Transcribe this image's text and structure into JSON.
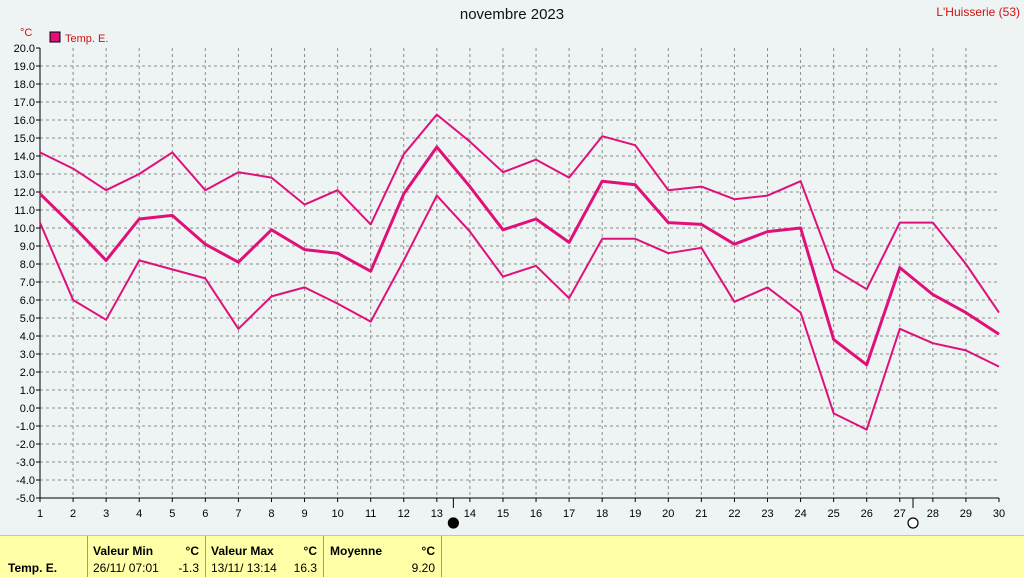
{
  "header": {
    "title": "novembre 2023",
    "station": "L'Huisserie (53)"
  },
  "chart_data": {
    "type": "line",
    "title": "novembre 2023",
    "y_unit": "°C",
    "ylim": [
      -5,
      20
    ],
    "y_step": 1,
    "x": [
      1,
      2,
      3,
      4,
      5,
      6,
      7,
      8,
      9,
      10,
      11,
      12,
      13,
      14,
      15,
      16,
      17,
      18,
      19,
      20,
      21,
      22,
      23,
      24,
      25,
      26,
      27,
      28,
      29,
      30
    ],
    "grid": true,
    "legend_position": "top-left",
    "series": [
      {
        "name": "Temp. E.",
        "role": "max",
        "color": "#e0107a",
        "values": [
          14.2,
          13.3,
          12.1,
          13.0,
          14.2,
          12.1,
          13.1,
          12.8,
          11.3,
          12.1,
          10.2,
          14.1,
          16.3,
          14.8,
          13.1,
          13.8,
          12.8,
          15.1,
          14.6,
          12.1,
          12.3,
          11.6,
          11.8,
          12.6,
          7.7,
          6.6,
          10.3,
          10.3,
          8.0,
          5.3
        ]
      },
      {
        "name": "",
        "role": "mean",
        "color": "#e0107a",
        "values": [
          11.9,
          10.1,
          8.2,
          10.5,
          10.7,
          9.1,
          8.1,
          9.9,
          8.8,
          8.6,
          7.6,
          11.9,
          14.5,
          12.3,
          9.9,
          10.5,
          9.2,
          12.6,
          12.4,
          10.3,
          10.2,
          9.1,
          9.8,
          10.0,
          3.8,
          2.4,
          7.8,
          6.3,
          5.3,
          4.1
        ]
      },
      {
        "name": "",
        "role": "min",
        "color": "#e0107a",
        "values": [
          10.3,
          6.0,
          4.9,
          8.2,
          7.7,
          7.2,
          4.4,
          6.2,
          6.7,
          5.8,
          4.8,
          8.2,
          11.8,
          9.8,
          7.3,
          7.9,
          6.1,
          9.4,
          9.4,
          8.6,
          8.9,
          5.9,
          6.7,
          5.3,
          -0.3,
          -1.2,
          4.4,
          3.6,
          3.2,
          2.3
        ]
      }
    ],
    "moon_markers": [
      {
        "phase": "new-moon",
        "x": 13.5
      },
      {
        "phase": "full-moon",
        "x": 27.4
      }
    ]
  },
  "legend": {
    "label": "Temp. E.",
    "color": "#e0107a",
    "unit": "°C"
  },
  "stats": {
    "series_label": "Temp. E.",
    "min": {
      "label": "Valeur Min",
      "unit": "°C",
      "date": "26/11/  07:01",
      "value": "-1.3"
    },
    "max": {
      "label": "Valeur Max",
      "unit": "°C",
      "date": "13/11/  13:14",
      "value": "16.3"
    },
    "mean": {
      "label": "Moyenne",
      "unit": "°C",
      "value": "9.20"
    }
  }
}
